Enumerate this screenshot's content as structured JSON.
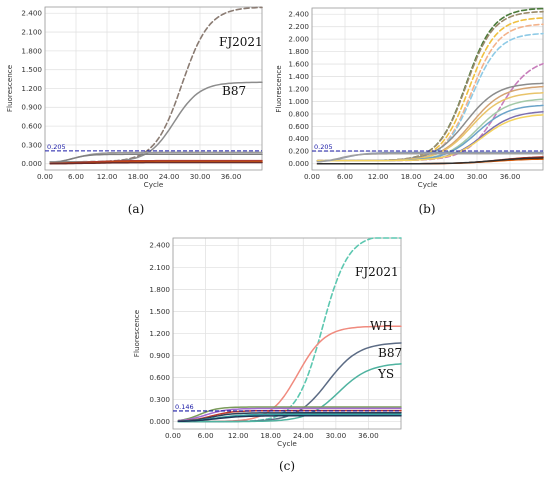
{
  "chart_data": [
    {
      "type": "line",
      "panel_caption": "(a)",
      "xlabel": "Cycle",
      "ylabel": "Fluorescence",
      "xlim": [
        0,
        42
      ],
      "ylim": [
        -0.1,
        2.5
      ],
      "xticks": [
        "0.00",
        "6.00",
        "12.00",
        "18.00",
        "24.00",
        "30.00",
        "36.00"
      ],
      "yticks": [
        "0.000",
        "0.300",
        "0.600",
        "0.900",
        "1.200",
        "1.500",
        "1.800",
        "2.100",
        "2.400"
      ],
      "threshold": {
        "label": "0.205",
        "value": 0.205,
        "color": "#1a1aa6"
      },
      "annotations": [
        "FJ2021",
        "B87"
      ],
      "grid": true,
      "series": [
        {
          "name": "FJ2021",
          "color": "#8a7b72",
          "dashed": true,
          "start": 0.03,
          "plateau": 2.5,
          "midpoint": 26.5,
          "slope": 0.38
        },
        {
          "name": "B87",
          "color": "#8c8c8c",
          "dashed": false,
          "start": 0.03,
          "plateau": 1.3,
          "midpoint": 25.0,
          "slope": 0.4
        },
        {
          "color": "#9d9d9d",
          "dashed": false,
          "start": 0.01,
          "plateau": 0.18,
          "midpoint": 6.0,
          "slope": 0.5
        },
        {
          "color": "#7f7f7f",
          "dashed": false,
          "start": 0.0,
          "plateau": 0.15,
          "midpoint": 5.0,
          "slope": 0.6
        },
        {
          "color": "#b03a2e",
          "dashed": false,
          "start": 0.0,
          "plateau": 0.05,
          "midpoint": 8.0,
          "slope": 0.3
        },
        {
          "color": "#d35400",
          "dashed": false,
          "start": 0.0,
          "plateau": 0.03,
          "midpoint": 10.0,
          "slope": 0.3
        },
        {
          "color": "#6b2b2b",
          "dashed": false,
          "start": 0.0,
          "plateau": 0.02,
          "midpoint": 10.0,
          "slope": 0.3
        }
      ]
    },
    {
      "type": "line",
      "panel_caption": "(b)",
      "xlabel": "Cycle",
      "ylabel": "Fluorescence",
      "xlim": [
        0,
        42
      ],
      "ylim": [
        -0.1,
        2.5
      ],
      "xticks": [
        "0.00",
        "6.00",
        "12.00",
        "18.00",
        "24.00",
        "30.00",
        "36.00"
      ],
      "yticks": [
        "0.000",
        "0.200",
        "0.400",
        "0.600",
        "0.800",
        "1.000",
        "1.200",
        "1.400",
        "1.600",
        "1.800",
        "2.000",
        "2.200",
        "2.400"
      ],
      "threshold": {
        "label": "0.205",
        "value": 0.205,
        "color": "#1a1aa6"
      },
      "grid": true,
      "series": [
        {
          "color": "#4a7a3a",
          "dashed": true,
          "start": 0.05,
          "plateau": 2.5,
          "midpoint": 28.0,
          "slope": 0.4
        },
        {
          "color": "#9a8a6a",
          "dashed": true,
          "start": 0.05,
          "plateau": 2.45,
          "midpoint": 28.0,
          "slope": 0.4
        },
        {
          "color": "#f0c040",
          "dashed": true,
          "start": 0.05,
          "plateau": 2.35,
          "midpoint": 28.5,
          "slope": 0.4
        },
        {
          "color": "#f3b28a",
          "dashed": true,
          "start": 0.05,
          "plateau": 2.25,
          "midpoint": 29.0,
          "slope": 0.4
        },
        {
          "color": "#8ecae6",
          "dashed": true,
          "start": 0.05,
          "plateau": 2.1,
          "midpoint": 29.0,
          "slope": 0.4
        },
        {
          "color": "#c77dbb",
          "dashed": true,
          "start": 0.05,
          "plateau": 1.7,
          "midpoint": 34.0,
          "slope": 0.35
        },
        {
          "color": "#8c8c8c",
          "dashed": false,
          "start": 0.05,
          "plateau": 1.3,
          "midpoint": 28.0,
          "slope": 0.35
        },
        {
          "color": "#d4a373",
          "dashed": false,
          "start": 0.05,
          "plateau": 1.25,
          "midpoint": 29.0,
          "slope": 0.35
        },
        {
          "color": "#e9c46a",
          "dashed": false,
          "start": 0.05,
          "plateau": 1.15,
          "midpoint": 29.0,
          "slope": 0.35
        },
        {
          "color": "#a3c9a8",
          "dashed": false,
          "start": 0.05,
          "plateau": 1.05,
          "midpoint": 30.0,
          "slope": 0.35
        },
        {
          "color": "#6aa3c8",
          "dashed": false,
          "start": 0.05,
          "plateau": 0.95,
          "midpoint": 30.0,
          "slope": 0.35
        },
        {
          "color": "#7c6fb0",
          "dashed": false,
          "start": 0.05,
          "plateau": 0.85,
          "midpoint": 31.0,
          "slope": 0.35
        },
        {
          "color": "#f4d35e",
          "dashed": false,
          "start": 0.05,
          "plateau": 0.8,
          "midpoint": 31.0,
          "slope": 0.35
        },
        {
          "color": "#8d99ae",
          "dashed": false,
          "start": 0.02,
          "plateau": 0.18,
          "midpoint": 6.0,
          "slope": 0.5
        },
        {
          "color": "#a0a0a0",
          "dashed": false,
          "start": 0.02,
          "plateau": 0.16,
          "midpoint": 5.0,
          "slope": 0.6
        },
        {
          "color": "#b03a2e",
          "dashed": false,
          "start": 0.0,
          "plateau": 0.12,
          "midpoint": 34.0,
          "slope": 0.3
        },
        {
          "color": "#d35400",
          "dashed": false,
          "start": 0.0,
          "plateau": 0.08,
          "midpoint": 33.0,
          "slope": 0.3
        },
        {
          "color": "#2e2e2e",
          "dashed": false,
          "start": 0.0,
          "plateau": 0.1,
          "midpoint": 33.0,
          "slope": 0.3
        }
      ]
    },
    {
      "type": "line",
      "panel_caption": "(c)",
      "xlabel": "Cycle",
      "ylabel": "Fluorescence",
      "xlim": [
        0,
        42
      ],
      "ylim": [
        -0.1,
        2.5
      ],
      "xticks": [
        "0.00",
        "6.00",
        "12.00",
        "18.00",
        "24.00",
        "30.00",
        "36.00"
      ],
      "yticks": [
        "0.000",
        "0.300",
        "0.600",
        "0.900",
        "1.200",
        "1.500",
        "1.800",
        "2.100",
        "2.400"
      ],
      "threshold": {
        "label": "0.146",
        "value": 0.146,
        "color": "#1a1aa6"
      },
      "annotations": [
        "FJ2021",
        "WH",
        "B87",
        "YS"
      ],
      "grid": true,
      "series": [
        {
          "name": "FJ2021",
          "color": "#5cc7b0",
          "dashed": true,
          "start": 0.0,
          "plateau": 2.55,
          "midpoint": 27.5,
          "slope": 0.42
        },
        {
          "name": "WH",
          "color": "#f08a7e",
          "dashed": false,
          "start": 0.0,
          "plateau": 1.3,
          "midpoint": 23.0,
          "slope": 0.4
        },
        {
          "name": "B87",
          "color": "#5b6b84",
          "dashed": false,
          "start": 0.0,
          "plateau": 1.08,
          "midpoint": 28.5,
          "slope": 0.35
        },
        {
          "name": "YS",
          "color": "#4fb3a0",
          "dashed": false,
          "start": 0.0,
          "plateau": 0.8,
          "midpoint": 30.5,
          "slope": 0.35
        },
        {
          "color": "#7a9a5a",
          "dashed": false,
          "start": 0.0,
          "plateau": 0.2,
          "midpoint": 5.0,
          "slope": 0.6
        },
        {
          "color": "#a26bd0",
          "dashed": false,
          "start": 0.0,
          "plateau": 0.18,
          "midpoint": 6.0,
          "slope": 0.5
        },
        {
          "color": "#c0392b",
          "dashed": false,
          "start": 0.0,
          "plateau": 0.15,
          "midpoint": 7.0,
          "slope": 0.5
        },
        {
          "color": "#2e4057",
          "dashed": false,
          "start": 0.0,
          "plateau": 0.12,
          "midpoint": 7.0,
          "slope": 0.5
        },
        {
          "color": "#38a3a5",
          "dashed": false,
          "start": 0.0,
          "plateau": 0.1,
          "midpoint": 8.0,
          "slope": 0.4
        },
        {
          "color": "#1d3557",
          "dashed": false,
          "start": 0.0,
          "plateau": 0.08,
          "midpoint": 8.0,
          "slope": 0.4
        }
      ]
    }
  ]
}
